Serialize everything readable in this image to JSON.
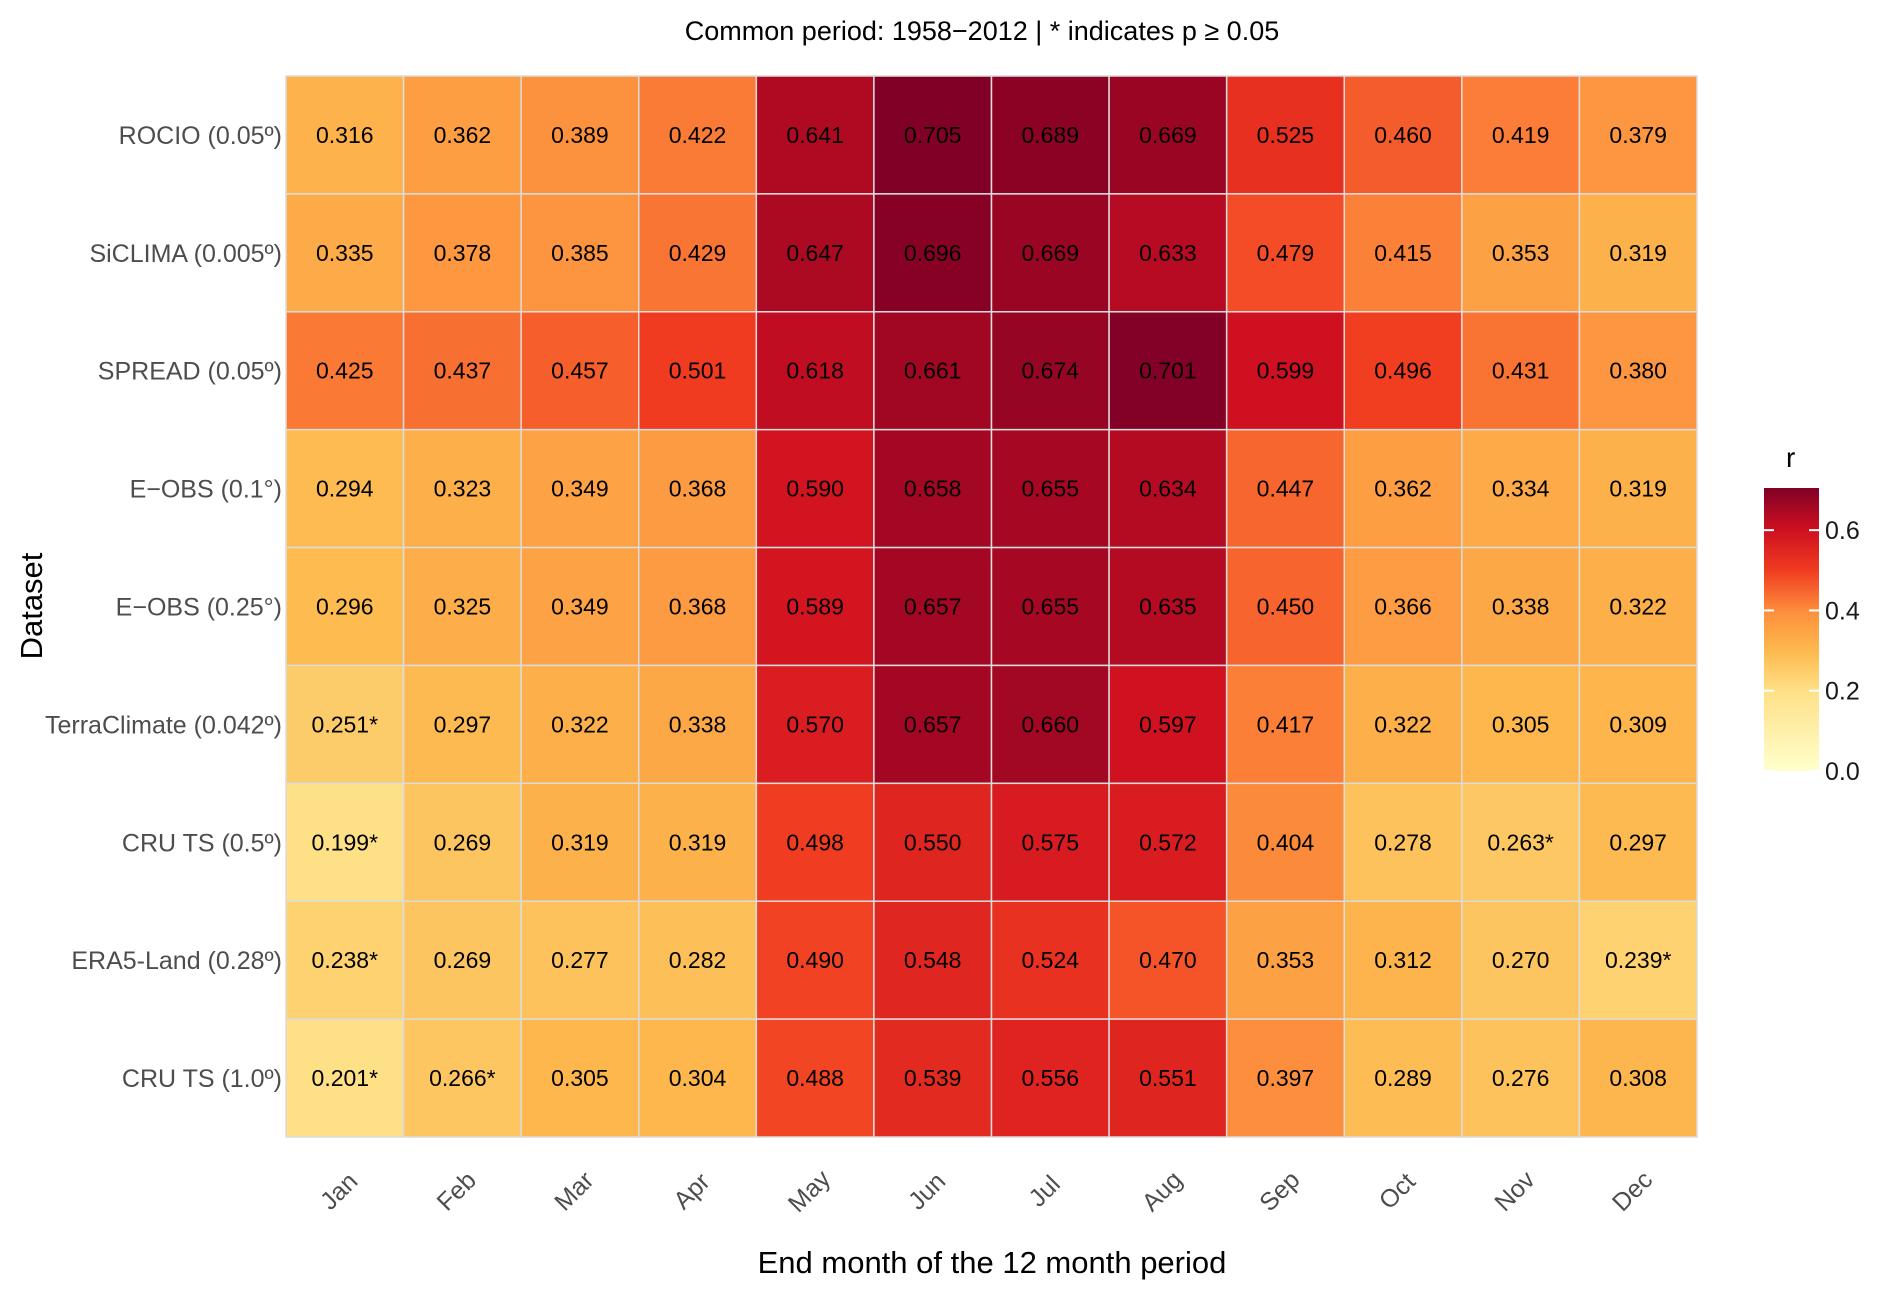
{
  "chart_data": {
    "type": "heatmap",
    "title": "Common period: 1958−2012 | * indicates p ≥ 0.05",
    "xlabel": "End month of the 12 month period",
    "ylabel": "Dataset",
    "columns": [
      "Jan",
      "Feb",
      "Mar",
      "Apr",
      "May",
      "Jun",
      "Jul",
      "Aug",
      "Sep",
      "Oct",
      "Nov",
      "Dec"
    ],
    "rows": [
      "ROCIO (0.05º)",
      "SiCLIMA (0.005º)",
      "SPREAD (0.05º)",
      "E−OBS (0.1°)",
      "E−OBS (0.25°)",
      "TerraClimate (0.042º)",
      "CRU TS (0.5º)",
      "ERA5-Land (0.28º)",
      "CRU TS (1.0º)"
    ],
    "values": [
      [
        0.316,
        0.362,
        0.389,
        0.422,
        0.641,
        0.705,
        0.689,
        0.669,
        0.525,
        0.46,
        0.419,
        0.379
      ],
      [
        0.335,
        0.378,
        0.385,
        0.429,
        0.647,
        0.696,
        0.669,
        0.633,
        0.479,
        0.415,
        0.353,
        0.319
      ],
      [
        0.425,
        0.437,
        0.457,
        0.501,
        0.618,
        0.661,
        0.674,
        0.701,
        0.599,
        0.496,
        0.431,
        0.38
      ],
      [
        0.294,
        0.323,
        0.349,
        0.368,
        0.59,
        0.658,
        0.655,
        0.634,
        0.447,
        0.362,
        0.334,
        0.319
      ],
      [
        0.296,
        0.325,
        0.349,
        0.368,
        0.589,
        0.657,
        0.655,
        0.635,
        0.45,
        0.366,
        0.338,
        0.322
      ],
      [
        0.251,
        0.297,
        0.322,
        0.338,
        0.57,
        0.657,
        0.66,
        0.597,
        0.417,
        0.322,
        0.305,
        0.309
      ],
      [
        0.199,
        0.269,
        0.319,
        0.319,
        0.498,
        0.55,
        0.575,
        0.572,
        0.404,
        0.278,
        0.263,
        0.297
      ],
      [
        0.238,
        0.269,
        0.277,
        0.282,
        0.49,
        0.548,
        0.524,
        0.47,
        0.353,
        0.312,
        0.27,
        0.239
      ],
      [
        0.201,
        0.266,
        0.305,
        0.304,
        0.488,
        0.539,
        0.556,
        0.551,
        0.397,
        0.289,
        0.276,
        0.308
      ]
    ],
    "labels": [
      [
        "0.316",
        "0.362",
        "0.389",
        "0.422",
        "0.641",
        "0.705",
        "0.689",
        "0.669",
        "0.525",
        "0.460",
        "0.419",
        "0.379"
      ],
      [
        "0.335",
        "0.378",
        "0.385",
        "0.429",
        "0.647",
        "0.696",
        "0.669",
        "0.633",
        "0.479",
        "0.415",
        "0.353",
        "0.319"
      ],
      [
        "0.425",
        "0.437",
        "0.457",
        "0.501",
        "0.618",
        "0.661",
        "0.674",
        "0.701",
        "0.599",
        "0.496",
        "0.431",
        "0.380"
      ],
      [
        "0.294",
        "0.323",
        "0.349",
        "0.368",
        "0.590",
        "0.658",
        "0.655",
        "0.634",
        "0.447",
        "0.362",
        "0.334",
        "0.319"
      ],
      [
        "0.296",
        "0.325",
        "0.349",
        "0.368",
        "0.589",
        "0.657",
        "0.655",
        "0.635",
        "0.450",
        "0.366",
        "0.338",
        "0.322"
      ],
      [
        "0.251*",
        "0.297",
        "0.322",
        "0.338",
        "0.570",
        "0.657",
        "0.660",
        "0.597",
        "0.417",
        "0.322",
        "0.305",
        "0.309"
      ],
      [
        "0.199*",
        "0.269",
        "0.319",
        "0.319",
        "0.498",
        "0.550",
        "0.575",
        "0.572",
        "0.404",
        "0.278",
        "0.263*",
        "0.297"
      ],
      [
        "0.238*",
        "0.269",
        "0.277",
        "0.282",
        "0.490",
        "0.548",
        "0.524",
        "0.470",
        "0.353",
        "0.312",
        "0.270",
        "0.239*"
      ],
      [
        "0.201*",
        "0.266*",
        "0.305",
        "0.304",
        "0.488",
        "0.539",
        "0.556",
        "0.551",
        "0.397",
        "0.289",
        "0.276",
        "0.308"
      ]
    ],
    "legend": {
      "title": "r",
      "ticks": [
        0.0,
        0.2,
        0.4,
        0.6
      ],
      "tick_labels": [
        "0.0",
        "0.2",
        "0.4",
        "0.6"
      ],
      "range": [
        0,
        0.705
      ],
      "position": "right"
    },
    "colormap": [
      {
        "v": 0.0,
        "color": "#ffffcc"
      },
      {
        "v": 0.2,
        "color": "#fee087"
      },
      {
        "v": 0.3,
        "color": "#fdb94e"
      },
      {
        "v": 0.4,
        "color": "#fd8d3c"
      },
      {
        "v": 0.5,
        "color": "#f03b20"
      },
      {
        "v": 0.6,
        "color": "#cf1020"
      },
      {
        "v": 0.705,
        "color": "#800026"
      }
    ]
  }
}
